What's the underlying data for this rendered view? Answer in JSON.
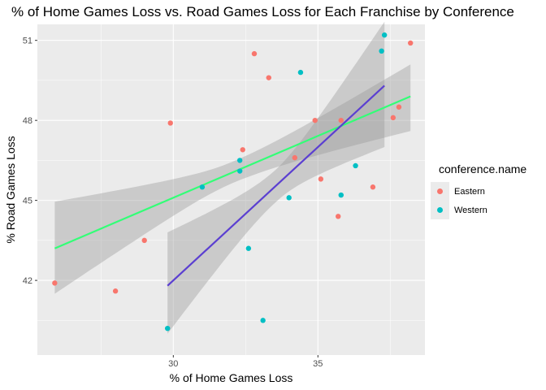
{
  "chart_data": {
    "type": "scatter",
    "title": "% of Home Games Loss vs. Road Games Loss for Each Franchise by Conference",
    "xlabel": "% of Home Games Loss",
    "ylabel": "% Road Games Loss",
    "xlim": [
      25.3,
      38.7
    ],
    "ylim": [
      39.2,
      51.6
    ],
    "x_ticks": [
      30,
      35
    ],
    "y_ticks": [
      42,
      45,
      48,
      51
    ],
    "grid": true,
    "legend": {
      "title": "conference.name",
      "placement": "right"
    },
    "series": [
      {
        "name": "Eastern",
        "color": "#f8766d",
        "points": [
          {
            "x": 25.9,
            "y": 41.9
          },
          {
            "x": 28.0,
            "y": 41.6
          },
          {
            "x": 29.0,
            "y": 43.5
          },
          {
            "x": 29.9,
            "y": 47.9
          },
          {
            "x": 32.4,
            "y": 46.9
          },
          {
            "x": 32.8,
            "y": 50.5
          },
          {
            "x": 33.3,
            "y": 49.6
          },
          {
            "x": 34.2,
            "y": 46.6
          },
          {
            "x": 34.9,
            "y": 48.0
          },
          {
            "x": 35.1,
            "y": 45.8
          },
          {
            "x": 35.7,
            "y": 44.4
          },
          {
            "x": 35.8,
            "y": 48.0
          },
          {
            "x": 36.9,
            "y": 45.5
          },
          {
            "x": 37.6,
            "y": 48.1
          },
          {
            "x": 37.8,
            "y": 48.5
          },
          {
            "x": 38.2,
            "y": 50.9
          }
        ]
      },
      {
        "name": "Western",
        "color": "#00bfc4",
        "points": [
          {
            "x": 29.8,
            "y": 40.2
          },
          {
            "x": 31.0,
            "y": 45.5
          },
          {
            "x": 32.3,
            "y": 46.1
          },
          {
            "x": 32.3,
            "y": 46.5
          },
          {
            "x": 32.6,
            "y": 43.2
          },
          {
            "x": 33.1,
            "y": 40.5
          },
          {
            "x": 34.0,
            "y": 45.1
          },
          {
            "x": 34.4,
            "y": 49.8
          },
          {
            "x": 35.8,
            "y": 45.2
          },
          {
            "x": 36.3,
            "y": 46.3
          },
          {
            "x": 37.2,
            "y": 50.6
          },
          {
            "x": 37.3,
            "y": 51.2
          }
        ]
      }
    ],
    "fit_lines": [
      {
        "color": "#33ff77",
        "x_range": [
          25.9,
          38.2
        ],
        "y_range": [
          43.2,
          48.9
        ],
        "band_start": [
          41.5,
          44.95
        ],
        "band_end": [
          47.6,
          50.1
        ]
      },
      {
        "color": "#5b3fd1",
        "x_range": [
          29.8,
          37.3
        ],
        "y_range": [
          41.8,
          49.3
        ],
        "band_start": [
          40.0,
          43.8
        ],
        "band_end": [
          47.0,
          51.7
        ]
      }
    ]
  }
}
